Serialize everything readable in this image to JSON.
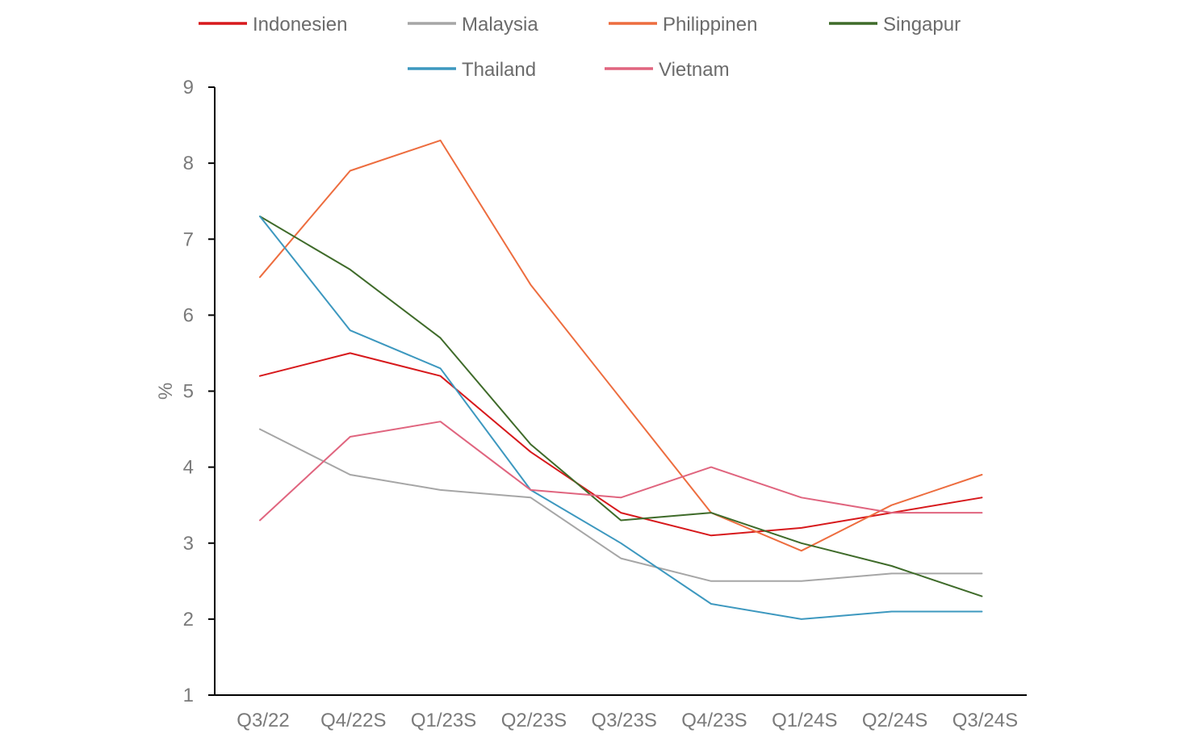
{
  "chart_data": {
    "type": "line",
    "title": "",
    "xlabel": "",
    "ylabel": "%",
    "ylim": [
      1,
      9
    ],
    "yticks": [
      1,
      2,
      3,
      4,
      5,
      6,
      7,
      8,
      9
    ],
    "grid": false,
    "legend_position": "top",
    "categories": [
      "Q3/22",
      "Q4/22S",
      "Q1/23S",
      "Q2/23S",
      "Q3/23S",
      "Q4/23S",
      "Q1/24S",
      "Q2/24S",
      "Q3/24S"
    ],
    "series": [
      {
        "name": "Indonesien",
        "color": "#d7191c",
        "values": [
          5.2,
          5.5,
          5.2,
          4.2,
          3.4,
          3.1,
          3.2,
          3.4,
          3.6
        ]
      },
      {
        "name": "Malaysia",
        "color": "#a6a6a6",
        "values": [
          4.5,
          3.9,
          3.7,
          3.6,
          2.8,
          2.5,
          2.5,
          2.6,
          2.6
        ]
      },
      {
        "name": "Philippinen",
        "color": "#ed6d3f",
        "values": [
          6.5,
          7.9,
          8.3,
          6.4,
          4.9,
          3.4,
          2.9,
          3.5,
          3.9
        ]
      },
      {
        "name": "Singapur",
        "color": "#3f6b2a",
        "values": [
          7.3,
          6.6,
          5.7,
          4.3,
          3.3,
          3.4,
          3.0,
          2.7,
          2.3
        ]
      },
      {
        "name": "Thailand",
        "color": "#3d98bf",
        "values": [
          7.3,
          5.8,
          5.3,
          3.7,
          3.0,
          2.2,
          2.0,
          2.1,
          2.1
        ]
      },
      {
        "name": "Vietnam",
        "color": "#e0657f",
        "values": [
          3.3,
          4.4,
          4.6,
          3.7,
          3.6,
          4.0,
          3.6,
          3.4,
          3.4
        ]
      }
    ]
  }
}
